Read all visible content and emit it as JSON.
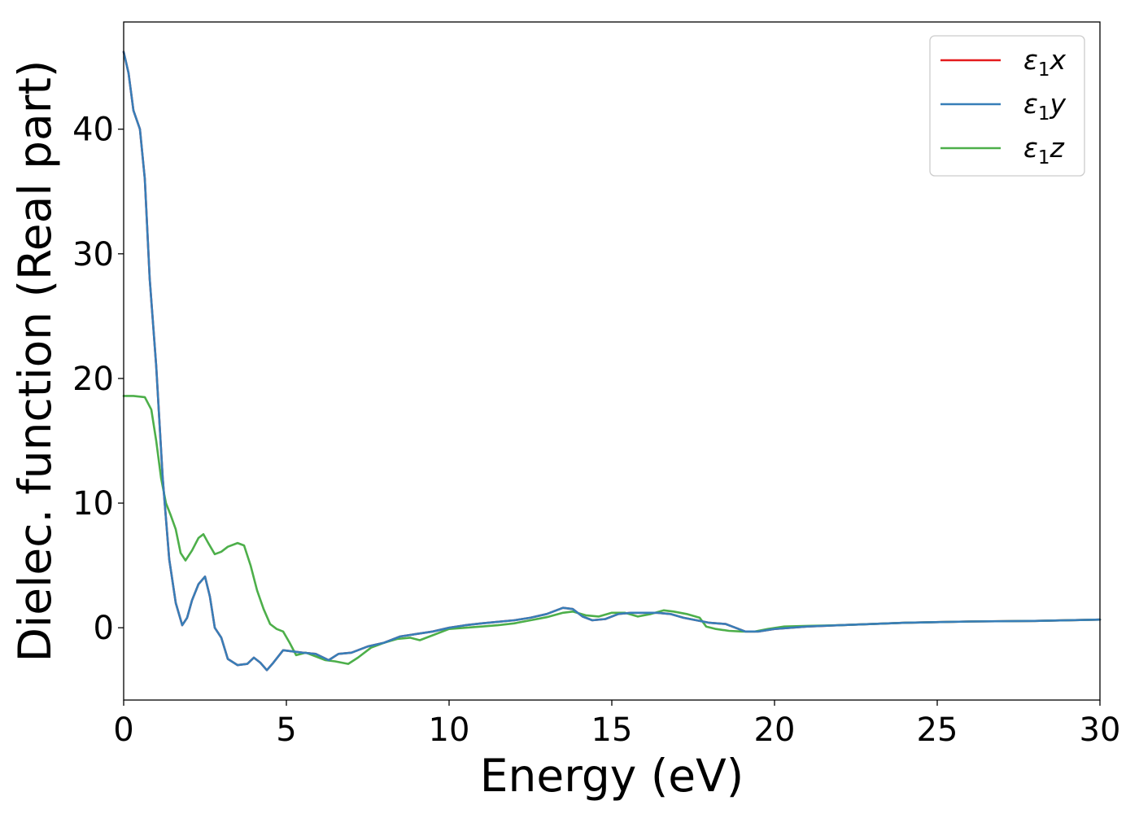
{
  "chart_data": {
    "type": "line",
    "xlabel": "Energy (eV)",
    "ylabel": "Dielec. function (Real part)",
    "xlim": [
      0,
      30
    ],
    "ylim": [
      -5.8,
      48.6
    ],
    "xticks": [
      0,
      5,
      10,
      15,
      20,
      25,
      30
    ],
    "yticks": [
      0,
      10,
      20,
      30,
      40
    ],
    "grid": false,
    "legend_position": "top-right",
    "series": [
      {
        "name": "ε1x",
        "label_base": "ε",
        "label_sub": "1",
        "label_suffix": "x",
        "color": "#e41a1c",
        "points": [
          [
            0,
            46.2
          ],
          [
            0.15,
            44.5
          ],
          [
            0.3,
            41.5
          ],
          [
            0.5,
            40.0
          ],
          [
            0.65,
            36.0
          ],
          [
            0.8,
            28.0
          ],
          [
            1.0,
            21.0
          ],
          [
            1.2,
            12.0
          ],
          [
            1.4,
            5.5
          ],
          [
            1.6,
            2.0
          ],
          [
            1.8,
            0.2
          ],
          [
            1.95,
            0.8
          ],
          [
            2.1,
            2.2
          ],
          [
            2.3,
            3.5
          ],
          [
            2.5,
            4.1
          ],
          [
            2.65,
            2.5
          ],
          [
            2.8,
            0.0
          ],
          [
            3.0,
            -0.8
          ],
          [
            3.2,
            -2.5
          ],
          [
            3.5,
            -3.0
          ],
          [
            3.8,
            -2.9
          ],
          [
            4.0,
            -2.4
          ],
          [
            4.2,
            -2.8
          ],
          [
            4.4,
            -3.4
          ],
          [
            4.6,
            -2.8
          ],
          [
            4.9,
            -1.8
          ],
          [
            5.2,
            -1.9
          ],
          [
            5.5,
            -2.0
          ],
          [
            5.9,
            -2.1
          ],
          [
            6.3,
            -2.6
          ],
          [
            6.6,
            -2.1
          ],
          [
            7.0,
            -2.0
          ],
          [
            7.5,
            -1.5
          ],
          [
            8.0,
            -1.2
          ],
          [
            8.5,
            -0.7
          ],
          [
            9.0,
            -0.5
          ],
          [
            9.5,
            -0.3
          ],
          [
            10.0,
            0.0
          ],
          [
            10.5,
            0.2
          ],
          [
            11.0,
            0.35
          ],
          [
            12.0,
            0.6
          ],
          [
            12.5,
            0.8
          ],
          [
            13.0,
            1.1
          ],
          [
            13.5,
            1.6
          ],
          [
            13.8,
            1.5
          ],
          [
            14.1,
            0.9
          ],
          [
            14.4,
            0.6
          ],
          [
            14.8,
            0.7
          ],
          [
            15.2,
            1.1
          ],
          [
            15.6,
            1.2
          ],
          [
            16.0,
            1.2
          ],
          [
            16.4,
            1.2
          ],
          [
            16.8,
            1.1
          ],
          [
            17.2,
            0.8
          ],
          [
            17.6,
            0.6
          ],
          [
            18.0,
            0.4
          ],
          [
            18.5,
            0.3
          ],
          [
            18.8,
            0.0
          ],
          [
            19.1,
            -0.3
          ],
          [
            19.5,
            -0.3
          ],
          [
            20.0,
            -0.1
          ],
          [
            21.0,
            0.1
          ],
          [
            22.0,
            0.2
          ],
          [
            24.0,
            0.4
          ],
          [
            26.0,
            0.5
          ],
          [
            28.0,
            0.55
          ],
          [
            30.0,
            0.65
          ]
        ]
      },
      {
        "name": "ε1y",
        "label_base": "ε",
        "label_sub": "1",
        "label_suffix": "y",
        "color": "#377eb8",
        "points": [
          [
            0,
            46.2
          ],
          [
            0.15,
            44.5
          ],
          [
            0.3,
            41.5
          ],
          [
            0.5,
            40.0
          ],
          [
            0.65,
            36.0
          ],
          [
            0.8,
            28.0
          ],
          [
            1.0,
            21.0
          ],
          [
            1.2,
            12.0
          ],
          [
            1.4,
            5.5
          ],
          [
            1.6,
            2.0
          ],
          [
            1.8,
            0.2
          ],
          [
            1.95,
            0.8
          ],
          [
            2.1,
            2.2
          ],
          [
            2.3,
            3.5
          ],
          [
            2.5,
            4.1
          ],
          [
            2.65,
            2.5
          ],
          [
            2.8,
            0.0
          ],
          [
            3.0,
            -0.8
          ],
          [
            3.2,
            -2.5
          ],
          [
            3.5,
            -3.0
          ],
          [
            3.8,
            -2.9
          ],
          [
            4.0,
            -2.4
          ],
          [
            4.2,
            -2.8
          ],
          [
            4.4,
            -3.4
          ],
          [
            4.6,
            -2.8
          ],
          [
            4.9,
            -1.8
          ],
          [
            5.2,
            -1.9
          ],
          [
            5.5,
            -2.0
          ],
          [
            5.9,
            -2.1
          ],
          [
            6.3,
            -2.6
          ],
          [
            6.6,
            -2.1
          ],
          [
            7.0,
            -2.0
          ],
          [
            7.5,
            -1.5
          ],
          [
            8.0,
            -1.2
          ],
          [
            8.5,
            -0.7
          ],
          [
            9.0,
            -0.5
          ],
          [
            9.5,
            -0.3
          ],
          [
            10.0,
            0.0
          ],
          [
            10.5,
            0.2
          ],
          [
            11.0,
            0.35
          ],
          [
            12.0,
            0.6
          ],
          [
            12.5,
            0.8
          ],
          [
            13.0,
            1.1
          ],
          [
            13.5,
            1.6
          ],
          [
            13.8,
            1.5
          ],
          [
            14.1,
            0.9
          ],
          [
            14.4,
            0.6
          ],
          [
            14.8,
            0.7
          ],
          [
            15.2,
            1.1
          ],
          [
            15.6,
            1.2
          ],
          [
            16.0,
            1.2
          ],
          [
            16.4,
            1.2
          ],
          [
            16.8,
            1.1
          ],
          [
            17.2,
            0.8
          ],
          [
            17.6,
            0.6
          ],
          [
            18.0,
            0.4
          ],
          [
            18.5,
            0.3
          ],
          [
            18.8,
            0.0
          ],
          [
            19.1,
            -0.3
          ],
          [
            19.5,
            -0.3
          ],
          [
            20.0,
            -0.1
          ],
          [
            21.0,
            0.1
          ],
          [
            22.0,
            0.2
          ],
          [
            24.0,
            0.4
          ],
          [
            26.0,
            0.5
          ],
          [
            28.0,
            0.55
          ],
          [
            30.0,
            0.65
          ]
        ]
      },
      {
        "name": "ε1z",
        "label_base": "ε",
        "label_sub": "1",
        "label_suffix": "z",
        "color": "#4daf4a",
        "points": [
          [
            0,
            18.6
          ],
          [
            0.3,
            18.6
          ],
          [
            0.65,
            18.5
          ],
          [
            0.85,
            17.5
          ],
          [
            1.0,
            15.0
          ],
          [
            1.15,
            12.0
          ],
          [
            1.3,
            10.0
          ],
          [
            1.45,
            9.0
          ],
          [
            1.6,
            7.9
          ],
          [
            1.75,
            6.0
          ],
          [
            1.9,
            5.4
          ],
          [
            2.1,
            6.2
          ],
          [
            2.3,
            7.2
          ],
          [
            2.45,
            7.5
          ],
          [
            2.6,
            6.8
          ],
          [
            2.8,
            5.9
          ],
          [
            3.0,
            6.1
          ],
          [
            3.2,
            6.5
          ],
          [
            3.5,
            6.8
          ],
          [
            3.7,
            6.6
          ],
          [
            3.9,
            5.0
          ],
          [
            4.1,
            3.0
          ],
          [
            4.3,
            1.5
          ],
          [
            4.5,
            0.3
          ],
          [
            4.7,
            -0.1
          ],
          [
            4.9,
            -0.3
          ],
          [
            5.1,
            -1.2
          ],
          [
            5.3,
            -2.2
          ],
          [
            5.6,
            -2.0
          ],
          [
            5.9,
            -2.3
          ],
          [
            6.2,
            -2.6
          ],
          [
            6.5,
            -2.7
          ],
          [
            6.9,
            -2.9
          ],
          [
            7.2,
            -2.4
          ],
          [
            7.6,
            -1.6
          ],
          [
            8.0,
            -1.2
          ],
          [
            8.4,
            -0.9
          ],
          [
            8.8,
            -0.8
          ],
          [
            9.1,
            -1.0
          ],
          [
            9.5,
            -0.6
          ],
          [
            10.0,
            -0.1
          ],
          [
            10.5,
            0.0
          ],
          [
            11.0,
            0.1
          ],
          [
            11.5,
            0.2
          ],
          [
            12.0,
            0.35
          ],
          [
            12.5,
            0.6
          ],
          [
            13.0,
            0.85
          ],
          [
            13.5,
            1.2
          ],
          [
            13.8,
            1.3
          ],
          [
            14.2,
            1.0
          ],
          [
            14.6,
            0.9
          ],
          [
            15.0,
            1.2
          ],
          [
            15.4,
            1.2
          ],
          [
            15.8,
            0.9
          ],
          [
            16.2,
            1.1
          ],
          [
            16.6,
            1.4
          ],
          [
            16.9,
            1.3
          ],
          [
            17.3,
            1.1
          ],
          [
            17.7,
            0.8
          ],
          [
            17.9,
            0.1
          ],
          [
            18.2,
            -0.1
          ],
          [
            18.6,
            -0.25
          ],
          [
            19.0,
            -0.3
          ],
          [
            19.4,
            -0.3
          ],
          [
            19.8,
            -0.1
          ],
          [
            20.3,
            0.1
          ],
          [
            21.0,
            0.15
          ],
          [
            22.0,
            0.2
          ],
          [
            24.0,
            0.4
          ],
          [
            26.0,
            0.5
          ],
          [
            28.0,
            0.55
          ],
          [
            30.0,
            0.65
          ]
        ]
      }
    ]
  }
}
